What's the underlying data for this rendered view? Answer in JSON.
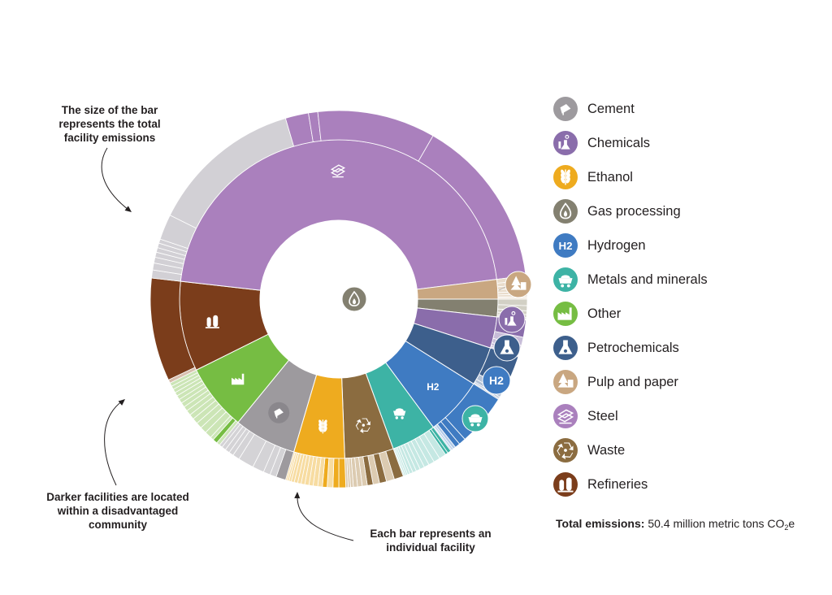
{
  "annotations": {
    "size": [
      "The size of the bar",
      "represents the total",
      "facility emissions"
    ],
    "darker": [
      "Darker facilities are located",
      "within a disadvantaged",
      "community"
    ],
    "each": [
      "Each bar represents an",
      "individual facility"
    ]
  },
  "total_emissions": {
    "label": "Total emissions:",
    "value": "50.4 million metric tons CO",
    "sub": "2",
    "suffix": "e"
  },
  "colors": {
    "cement": "#9d9a9e",
    "chemicals": "#8a6dab",
    "ethanol": "#eeab1f",
    "gas_processing": "#838070",
    "hydrogen": "#3f7bc2",
    "metals": "#3db3a5",
    "other": "#76bd43",
    "petrochemicals": "#3d5f8c",
    "pulp": "#c9a781",
    "steel": "#aa80bd",
    "waste": "#8b6c40",
    "refineries": "#7b3d1b"
  },
  "chart_data": {
    "type": "sunburst",
    "unit": "million metric tons CO2e",
    "total": 50.4,
    "start_angle_deg": 90,
    "direction": "clockwise",
    "sectors": [
      {
        "name": "Gas processing",
        "key": "gas_processing",
        "icon": "flame-icon",
        "inner": "#838070",
        "light": "#d2d0c5",
        "dark": "#838070",
        "value": 0.9,
        "facilities": [
          {
            "v": 0.28
          },
          {
            "v": 0.22
          },
          {
            "v": 0.16
          },
          {
            "v": 0.12
          },
          {
            "v": 0.07
          },
          {
            "v": 0.05
          }
        ]
      },
      {
        "name": "Chemicals",
        "key": "chemicals",
        "icon": "chemicals-icon",
        "inner": "#8a6dab",
        "light": "#c7bdd8",
        "dark": "#8a6dab",
        "value": 1.6,
        "facilities": [
          {
            "v": 0.72,
            "d": true
          },
          {
            "v": 0.35
          },
          {
            "v": 0.22
          },
          {
            "v": 0.14
          },
          {
            "v": 0.08
          },
          {
            "v": 0.05
          }
        ]
      },
      {
        "name": "Petrochemicals",
        "key": "petrochemicals",
        "icon": "flask-icon",
        "inner": "#3d5f8c",
        "light": "#b4c2d6",
        "dark": "#3d5f8c",
        "value": 2.0,
        "facilities": [
          {
            "v": 1.45,
            "d": true
          },
          {
            "v": 0.28
          },
          {
            "v": 0.15
          },
          {
            "v": 0.07
          },
          {
            "v": 0.05
          }
        ]
      },
      {
        "name": "Hydrogen",
        "key": "hydrogen",
        "icon": "hydrogen-icon",
        "inner": "#3f7bc2",
        "light": "#b3cbe8",
        "dark": "#3f7bc2",
        "value": 3.0,
        "facilities": [
          {
            "v": 2.2,
            "d": true
          },
          {
            "v": 0.3,
            "d": true
          },
          {
            "v": 0.22,
            "d": true
          },
          {
            "v": 0.12
          },
          {
            "v": 0.08
          },
          {
            "v": 0.05
          }
        ]
      },
      {
        "name": "Metals and minerals",
        "key": "metals",
        "icon": "metals-icon",
        "inner": "#3db3a5",
        "light": "#c5e8e3",
        "dark": "#3db3a5",
        "value": 2.3,
        "facilities": [
          {
            "v": 0.15,
            "d": true
          },
          {
            "v": 0.12,
            "d": true
          },
          {
            "v": 0.3
          },
          {
            "v": 0.28
          },
          {
            "v": 0.25
          },
          {
            "v": 0.22
          },
          {
            "v": 0.2
          },
          {
            "v": 0.18
          },
          {
            "v": 0.16
          },
          {
            "v": 0.14
          },
          {
            "v": 0.1
          },
          {
            "v": 0.08
          },
          {
            "v": 0.07
          },
          {
            "v": 0.05
          }
        ]
      },
      {
        "name": "Waste",
        "key": "waste",
        "icon": "recycle-icon",
        "inner": "#8b6c40",
        "light": "#dccbb1",
        "dark": "#8b6c40",
        "value": 2.5,
        "facilities": [
          {
            "v": 0.4,
            "d": true
          },
          {
            "v": 0.35
          },
          {
            "v": 0.3,
            "d": true
          },
          {
            "v": 0.28
          },
          {
            "v": 0.25,
            "d": true
          },
          {
            "v": 0.22
          },
          {
            "v": 0.2
          },
          {
            "v": 0.18
          },
          {
            "v": 0.12
          },
          {
            "v": 0.1
          },
          {
            "v": 0.1
          }
        ]
      },
      {
        "name": "Ethanol",
        "key": "ethanol",
        "icon": "wheat-icon",
        "inner": "#eeab1f",
        "light": "#f7dca1",
        "dark": "#eeab1f",
        "value": 2.6,
        "facilities": [
          {
            "v": 0.3,
            "d": true
          },
          {
            "v": 0.25,
            "d": true
          },
          {
            "v": 0.25
          },
          {
            "v": 0.2,
            "d": true
          },
          {
            "v": 0.2
          },
          {
            "v": 0.2
          },
          {
            "v": 0.18
          },
          {
            "v": 0.18
          },
          {
            "v": 0.16
          },
          {
            "v": 0.15
          },
          {
            "v": 0.15
          },
          {
            "v": 0.13
          },
          {
            "v": 0.1
          },
          {
            "v": 0.08
          },
          {
            "v": 0.07
          }
        ]
      },
      {
        "name": "Cement",
        "key": "cement",
        "icon": "cement-icon",
        "inner": "#9d9a9e",
        "light": "#d4d3d6",
        "dark": "#9d9a9e",
        "value": 3.2,
        "facilities": [
          {
            "v": 0.42,
            "d": true
          },
          {
            "v": 0.28
          },
          {
            "v": 0.3
          },
          {
            "v": 0.5
          },
          {
            "v": 0.68
          },
          {
            "v": 0.3
          },
          {
            "v": 0.2
          },
          {
            "v": 0.2
          },
          {
            "v": 0.18
          },
          {
            "v": 0.14
          }
        ]
      },
      {
        "name": "Other",
        "key": "other",
        "icon": "factory-icon",
        "inner": "#76bd43",
        "light": "#cce5b6",
        "dark": "#76bd43",
        "value": 3.4,
        "facilities": [
          {
            "v": 0.15
          },
          {
            "v": 0.2,
            "d": true
          },
          {
            "v": 0.15
          },
          {
            "v": 0.3
          },
          {
            "v": 0.28
          },
          {
            "v": 0.26
          },
          {
            "v": 0.24
          },
          {
            "v": 0.22
          },
          {
            "v": 0.22
          },
          {
            "v": 0.2
          },
          {
            "v": 0.2
          },
          {
            "v": 0.18
          },
          {
            "v": 0.18
          },
          {
            "v": 0.16
          },
          {
            "v": 0.16
          },
          {
            "v": 0.15
          },
          {
            "v": 0.15
          }
        ]
      },
      {
        "name": "Refineries",
        "key": "refineries",
        "icon": "refinery-icon",
        "inner": "#7b3d1b",
        "light": "#d8bfae",
        "dark": "#7b3d1b",
        "value": 4.6,
        "facilities": [
          {
            "v": 0.15
          },
          {
            "v": 4.45,
            "d": true
          }
        ]
      },
      {
        "name": "Steel",
        "key": "steel",
        "icon": "steel-icon",
        "inner": "#aa80bd",
        "light": "#d2d0d5",
        "dark": "#aa80bd",
        "value": 23.3,
        "facilities": [
          {
            "v": 0.35
          },
          {
            "v": 0.3
          },
          {
            "v": 0.25
          },
          {
            "v": 0.22
          },
          {
            "v": 0.2
          },
          {
            "v": 0.2
          },
          {
            "v": 0.18
          },
          {
            "v": 1.1
          },
          {
            "v": 6.6
          },
          {
            "v": 1.0,
            "d": true
          },
          {
            "v": 0.4,
            "d": true
          },
          {
            "v": 5.1,
            "d": true
          },
          {
            "v": 7.4,
            "d": true
          }
        ]
      },
      {
        "name": "Pulp and paper",
        "key": "pulp",
        "icon": "pulp-icon",
        "inner": "#c9a781",
        "light": "#e9dccb",
        "dark": "#c9a781",
        "value": 1.0,
        "facilities": [
          {
            "v": 0.2
          },
          {
            "v": 0.18
          },
          {
            "v": 0.15
          },
          {
            "v": 0.14
          },
          {
            "v": 0.12
          },
          {
            "v": 0.1
          },
          {
            "v": 0.06
          },
          {
            "v": 0.05
          }
        ]
      }
    ]
  },
  "legend": [
    {
      "label": "Cement",
      "icon": "cement-icon",
      "color": "#9d9a9e"
    },
    {
      "label": "Chemicals",
      "icon": "chemicals-icon",
      "color": "#8a6dab"
    },
    {
      "label": "Ethanol",
      "icon": "wheat-icon",
      "color": "#eeab1f"
    },
    {
      "label": "Gas processing",
      "icon": "flame-icon",
      "color": "#838070"
    },
    {
      "label": "Hydrogen",
      "icon": "hydrogen-icon",
      "color": "#3f7bc2",
      "glyph": "H2"
    },
    {
      "label": "Metals and minerals",
      "icon": "metals-icon",
      "color": "#3db3a5"
    },
    {
      "label": "Other",
      "icon": "factory-icon",
      "color": "#76bd43"
    },
    {
      "label": "Petrochemicals",
      "icon": "flask-icon",
      "color": "#3d5f8c"
    },
    {
      "label": "Pulp and paper",
      "icon": "pulp-icon",
      "color": "#c9a781"
    },
    {
      "label": "Steel",
      "icon": "steel-icon",
      "color": "#aa80bd"
    },
    {
      "label": "Waste",
      "icon": "recycle-icon",
      "color": "#8b6c40"
    },
    {
      "label": "Refineries",
      "icon": "refinery-icon",
      "color": "#7b3d1b"
    }
  ]
}
